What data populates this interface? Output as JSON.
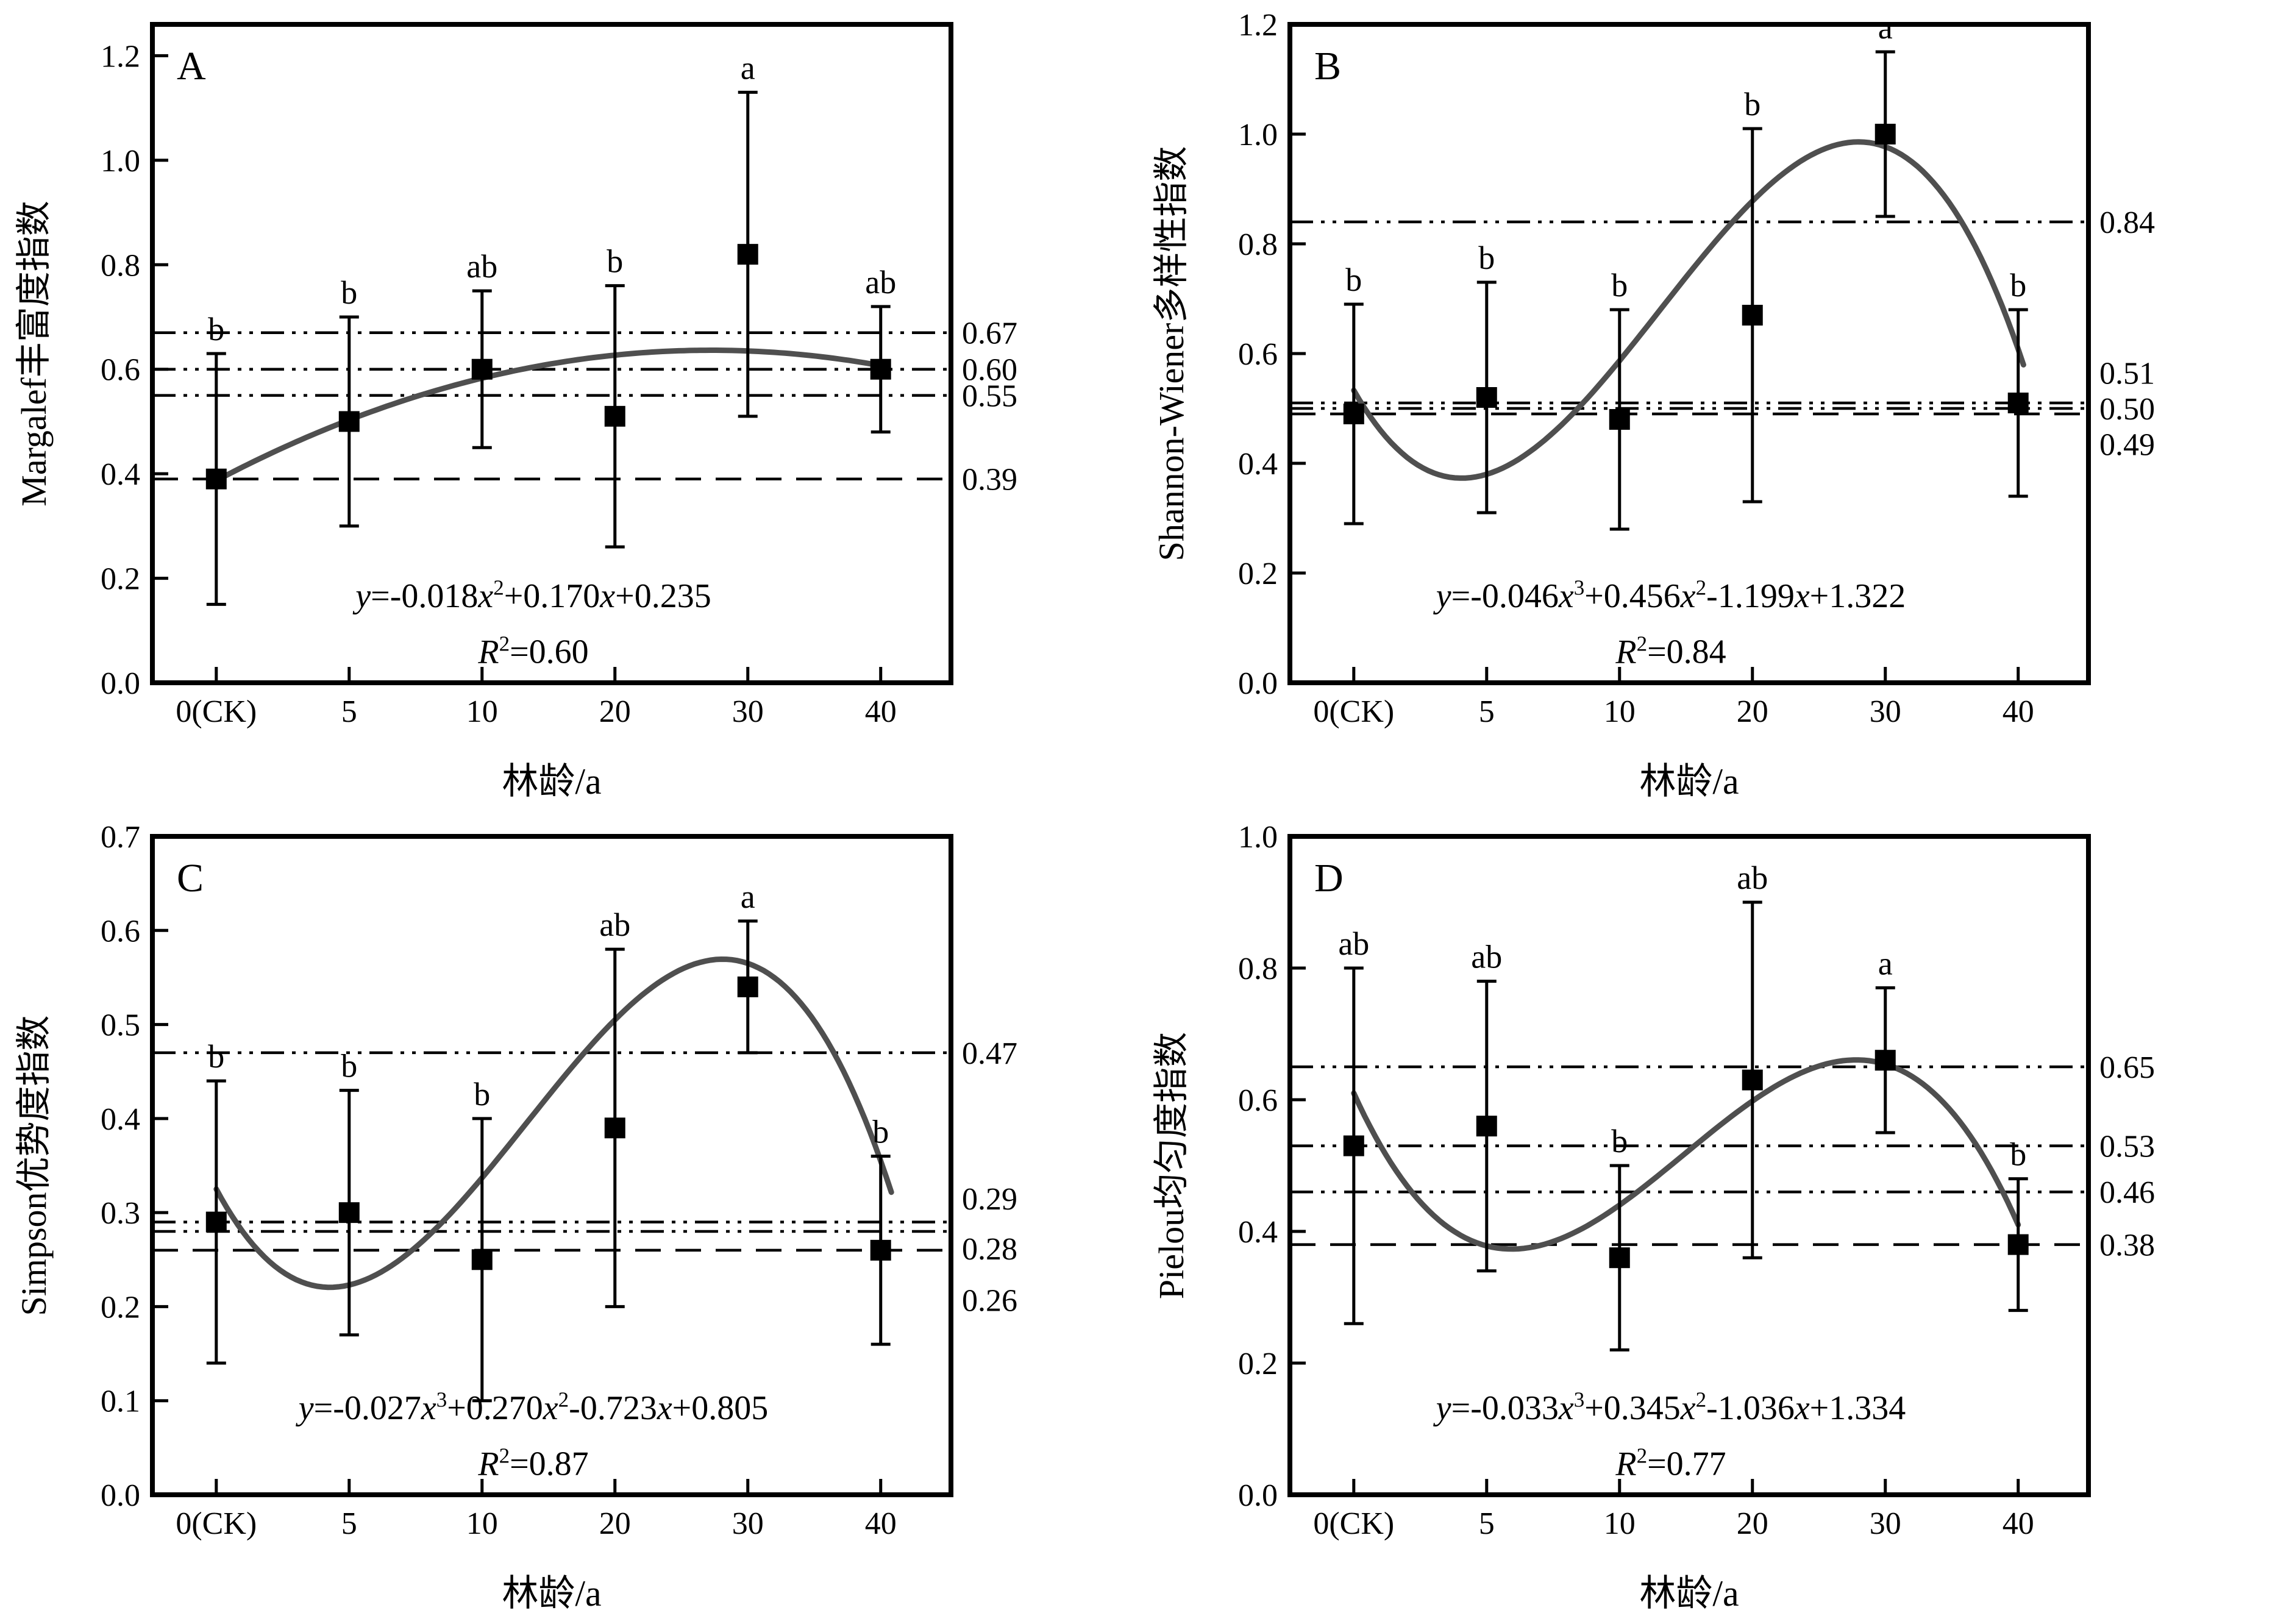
{
  "figure": {
    "background": "#ffffff",
    "ink_color": "#000000",
    "curve_color": "#4f4f4f",
    "xlabel": "林龄/a"
  },
  "chart_data": [
    {
      "type": "scatter",
      "panel_label": "A",
      "ylabel": "Margalef丰富度指数",
      "xlabel": "林龄/a",
      "categories": [
        "0(CK)",
        "5",
        "10",
        "20",
        "30",
        "40"
      ],
      "ylim": [
        0,
        1.26
      ],
      "ytick_labels": [
        "0.0",
        "0.2",
        "0.4",
        "0.6",
        "0.8",
        "1.0",
        "1.2"
      ],
      "points": [
        {
          "category": "0(CK)",
          "value": 0.39,
          "err_low": 0.15,
          "err_high": 0.63,
          "letter": "b"
        },
        {
          "category": "5",
          "value": 0.5,
          "err_low": 0.3,
          "err_high": 0.7,
          "letter": "b"
        },
        {
          "category": "10",
          "value": 0.6,
          "err_low": 0.45,
          "err_high": 0.75,
          "letter": "ab"
        },
        {
          "category": "20",
          "value": 0.51,
          "err_low": 0.26,
          "err_high": 0.76,
          "letter": "b"
        },
        {
          "category": "30",
          "value": 0.82,
          "err_low": 0.51,
          "err_high": 1.13,
          "letter": "a"
        },
        {
          "category": "40",
          "value": 0.6,
          "err_low": 0.48,
          "err_high": 0.72,
          "letter": "ab"
        }
      ],
      "ref_lines": [
        {
          "value": 0.67,
          "style": "dash-dot-dot",
          "label": "0.67"
        },
        {
          "value": 0.6,
          "style": "dash-dot-dot",
          "label": "0.60"
        },
        {
          "value": 0.55,
          "style": "dash-dot-dot",
          "label": "0.55"
        },
        {
          "value": 0.39,
          "style": "dashed",
          "label": "0.39"
        }
      ],
      "fit_curve": {
        "equation": "y=-0.018x²+0.170x+0.235",
        "r_squared": "R²=0.60",
        "poly_coeffs_ascending": [
          0.235,
          0.17,
          -0.018
        ],
        "x_is_ordinal": true,
        "t_end": 6.0
      }
    },
    {
      "type": "scatter",
      "panel_label": "B",
      "ylabel": "Shannon-Wiener多样性指数",
      "xlabel": "林龄/a",
      "categories": [
        "0(CK)",
        "5",
        "10",
        "20",
        "30",
        "40"
      ],
      "ylim": [
        0,
        1.2
      ],
      "ytick_labels": [
        "0.0",
        "0.2",
        "0.4",
        "0.6",
        "0.8",
        "1.0",
        "1.2"
      ],
      "points": [
        {
          "category": "0(CK)",
          "value": 0.49,
          "err_low": 0.29,
          "err_high": 0.69,
          "letter": "b"
        },
        {
          "category": "5",
          "value": 0.52,
          "err_low": 0.31,
          "err_high": 0.73,
          "letter": "b"
        },
        {
          "category": "10",
          "value": 0.48,
          "err_low": 0.28,
          "err_high": 0.68,
          "letter": "b"
        },
        {
          "category": "20",
          "value": 0.67,
          "err_low": 0.33,
          "err_high": 1.01,
          "letter": "b"
        },
        {
          "category": "30",
          "value": 1.0,
          "err_low": 0.85,
          "err_high": 1.15,
          "letter": "a"
        },
        {
          "category": "40",
          "value": 0.51,
          "err_low": 0.34,
          "err_high": 0.68,
          "letter": "b"
        }
      ],
      "ref_lines": [
        {
          "value": 0.84,
          "style": "dash-dot-dot",
          "label": "0.84"
        },
        {
          "value": 0.51,
          "style": "dash-dot-dot",
          "label": "0.51",
          "label_y": 0.565
        },
        {
          "value": 0.5,
          "style": "dash-dot-dot",
          "label": "0.50",
          "label_y": 0.5
        },
        {
          "value": 0.49,
          "style": "dashed",
          "label": "0.49",
          "label_y": 0.435
        }
      ],
      "fit_curve": {
        "equation": "y=-0.046x³+0.456x²-1.199x+1.322",
        "r_squared": "R²=0.84",
        "poly_coeffs_ascending": [
          1.322,
          -1.199,
          0.456,
          -0.046
        ],
        "x_is_ordinal": true,
        "t_end": 6.05
      }
    },
    {
      "type": "scatter",
      "panel_label": "C",
      "ylabel": "Simpson优势度指数",
      "xlabel": "林龄/a",
      "categories": [
        "0(CK)",
        "5",
        "10",
        "20",
        "30",
        "40"
      ],
      "ylim": [
        0,
        0.7
      ],
      "ytick_labels": [
        "0.0",
        "0.1",
        "0.2",
        "0.3",
        "0.4",
        "0.5",
        "0.6",
        "0.7"
      ],
      "points": [
        {
          "category": "0(CK)",
          "value": 0.29,
          "err_low": 0.14,
          "err_high": 0.44,
          "letter": "b"
        },
        {
          "category": "5",
          "value": 0.3,
          "err_low": 0.17,
          "err_high": 0.43,
          "letter": "b"
        },
        {
          "category": "10",
          "value": 0.25,
          "err_low": 0.1,
          "err_high": 0.4,
          "letter": "b"
        },
        {
          "category": "20",
          "value": 0.39,
          "err_low": 0.2,
          "err_high": 0.58,
          "letter": "ab"
        },
        {
          "category": "30",
          "value": 0.54,
          "err_low": 0.47,
          "err_high": 0.61,
          "letter": "a"
        },
        {
          "category": "40",
          "value": 0.26,
          "err_low": 0.16,
          "err_high": 0.36,
          "letter": "b"
        }
      ],
      "ref_lines": [
        {
          "value": 0.47,
          "style": "dash-dot-dot",
          "label": "0.47"
        },
        {
          "value": 0.29,
          "style": "dash-dot-dot",
          "label": "0.29",
          "label_y": 0.315
        },
        {
          "value": 0.28,
          "style": "dash-dot-dot",
          "label": "0.28",
          "label_y": 0.262
        },
        {
          "value": 0.26,
          "style": "dashed",
          "label": "0.26",
          "label_y": 0.207
        }
      ],
      "fit_curve": {
        "equation": "y=-0.027x³+0.270x²-0.723x+0.805",
        "r_squared": "R²=0.87",
        "poly_coeffs_ascending": [
          0.805,
          -0.723,
          0.27,
          -0.027
        ],
        "x_is_ordinal": true,
        "t_end": 6.1
      }
    },
    {
      "type": "scatter",
      "panel_label": "D",
      "ylabel": "Pielou均匀度指数",
      "xlabel": "林龄/a",
      "categories": [
        "0(CK)",
        "5",
        "10",
        "20",
        "30",
        "40"
      ],
      "ylim": [
        0,
        1.0
      ],
      "ytick_labels": [
        "0.0",
        "0.2",
        "0.4",
        "0.6",
        "0.8",
        "1.0"
      ],
      "points": [
        {
          "category": "0(CK)",
          "value": 0.53,
          "err_low": 0.26,
          "err_high": 0.8,
          "letter": "ab"
        },
        {
          "category": "5",
          "value": 0.56,
          "err_low": 0.34,
          "err_high": 0.78,
          "letter": "ab"
        },
        {
          "category": "10",
          "value": 0.36,
          "err_low": 0.22,
          "err_high": 0.5,
          "letter": "b"
        },
        {
          "category": "20",
          "value": 0.63,
          "err_low": 0.36,
          "err_high": 0.9,
          "letter": "ab"
        },
        {
          "category": "30",
          "value": 0.66,
          "err_low": 0.55,
          "err_high": 0.77,
          "letter": "a"
        },
        {
          "category": "40",
          "value": 0.38,
          "err_low": 0.28,
          "err_high": 0.48,
          "letter": "b"
        }
      ],
      "ref_lines": [
        {
          "value": 0.65,
          "style": "dash-dot-dot",
          "label": "0.65"
        },
        {
          "value": 0.53,
          "style": "dash-dot-dot",
          "label": "0.53"
        },
        {
          "value": 0.46,
          "style": "dash-dot-dot",
          "label": "0.46"
        },
        {
          "value": 0.38,
          "style": "dashed",
          "label": "0.38"
        }
      ],
      "fit_curve": {
        "equation": "y=-0.033x³+0.345x²-1.036x+1.334",
        "r_squared": "R²=0.77",
        "poly_coeffs_ascending": [
          1.334,
          -1.036,
          0.345,
          -0.033
        ],
        "x_is_ordinal": true,
        "t_end": 6.0
      }
    }
  ]
}
